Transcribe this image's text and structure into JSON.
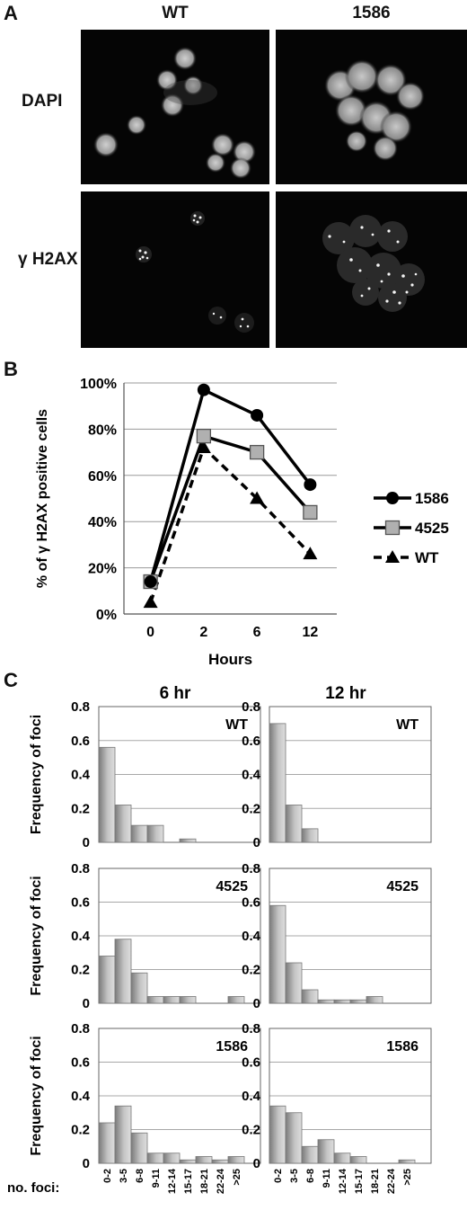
{
  "panel_a": {
    "letter": "A",
    "columns": [
      "WT",
      "1586"
    ],
    "rows": [
      "DAPI",
      "γ H2AX"
    ]
  },
  "panel_b": {
    "letter": "B"
  },
  "panel_c": {
    "letter": "C"
  },
  "chart_data": [
    {
      "type": "line",
      "ylabel": "% of γ H2AX positive cells",
      "xlabel": "Hours",
      "categories": [
        "0",
        "2",
        "6",
        "12"
      ],
      "ylim": [
        0,
        100
      ],
      "yticks": [
        "0%",
        "20%",
        "40%",
        "60%",
        "80%",
        "100%"
      ],
      "grid": true,
      "legend": "right",
      "series": [
        {
          "name": "1586",
          "values": [
            14,
            97,
            86,
            56
          ],
          "marker": "circle",
          "line": "solid",
          "color": "#000000"
        },
        {
          "name": "4525",
          "values": [
            14,
            77,
            70,
            44
          ],
          "marker": "square",
          "line": "solid",
          "color": "#000000"
        },
        {
          "name": "WT",
          "values": [
            5,
            72,
            50,
            26
          ],
          "marker": "triangle",
          "line": "dashed",
          "color": "#000000"
        }
      ]
    },
    {
      "type": "bar",
      "title": "6 hr",
      "label": "WT",
      "ylabel": "Frequency of foci",
      "categories": [
        "0-2",
        "3-5",
        "6-8",
        "9-11",
        "12-14",
        "15-17",
        "18-21",
        "22-24",
        ">25"
      ],
      "values": [
        0.56,
        0.22,
        0.1,
        0.1,
        0,
        0.02,
        0,
        0,
        0
      ],
      "ylim": [
        0,
        0.8
      ],
      "yticks": [
        "0",
        "0.2",
        "0.4",
        "0.6",
        "0.8"
      ]
    },
    {
      "type": "bar",
      "title": "12 hr",
      "label": "WT",
      "ylabel": "",
      "categories": [
        "0-2",
        "3-5",
        "6-8",
        "9-11",
        "12-14",
        "15-17",
        "18-21",
        "22-24",
        ">25"
      ],
      "values": [
        0.7,
        0.22,
        0.08,
        0,
        0,
        0,
        0,
        0,
        0
      ],
      "ylim": [
        0,
        0.8
      ],
      "yticks": [
        "0",
        "0.2",
        "0.4",
        "0.6",
        "0.8"
      ]
    },
    {
      "type": "bar",
      "title": "",
      "label": "4525",
      "ylabel": "Frequency of foci",
      "categories": [
        "0-2",
        "3-5",
        "6-8",
        "9-11",
        "12-14",
        "15-17",
        "18-21",
        "22-24",
        ">25"
      ],
      "values": [
        0.28,
        0.38,
        0.18,
        0.04,
        0.04,
        0.04,
        0,
        0,
        0.04
      ],
      "ylim": [
        0,
        0.8
      ],
      "yticks": [
        "0",
        "0.2",
        "0.4",
        "0.6",
        "0.8"
      ]
    },
    {
      "type": "bar",
      "title": "",
      "label": "4525",
      "ylabel": "",
      "categories": [
        "0-2",
        "3-5",
        "6-8",
        "9-11",
        "12-14",
        "15-17",
        "18-21",
        "22-24",
        ">25"
      ],
      "values": [
        0.58,
        0.24,
        0.08,
        0.02,
        0.02,
        0.02,
        0.04,
        0,
        0
      ],
      "ylim": [
        0,
        0.8
      ],
      "yticks": [
        "0",
        "0.2",
        "0.4",
        "0.6",
        "0.8"
      ]
    },
    {
      "type": "bar",
      "title": "",
      "label": "1586",
      "ylabel": "Frequency of foci",
      "xlabel": "no. foci:",
      "categories": [
        "0-2",
        "3-5",
        "6-8",
        "9-11",
        "12-14",
        "15-17",
        "18-21",
        "22-24",
        ">25"
      ],
      "values": [
        0.24,
        0.34,
        0.18,
        0.06,
        0.06,
        0.02,
        0.04,
        0.02,
        0.04
      ],
      "ylim": [
        0,
        0.8
      ],
      "yticks": [
        "0",
        "0.2",
        "0.4",
        "0.6",
        "0.8"
      ]
    },
    {
      "type": "bar",
      "title": "",
      "label": "1586",
      "ylabel": "",
      "categories": [
        "0-2",
        "3-5",
        "6-8",
        "9-11",
        "12-14",
        "15-17",
        "18-21",
        "22-24",
        ">25"
      ],
      "values": [
        0.34,
        0.3,
        0.1,
        0.14,
        0.06,
        0.04,
        0,
        0,
        0.02
      ],
      "ylim": [
        0,
        0.8
      ],
      "yticks": [
        "0",
        "0.2",
        "0.4",
        "0.6",
        "0.8"
      ]
    }
  ]
}
